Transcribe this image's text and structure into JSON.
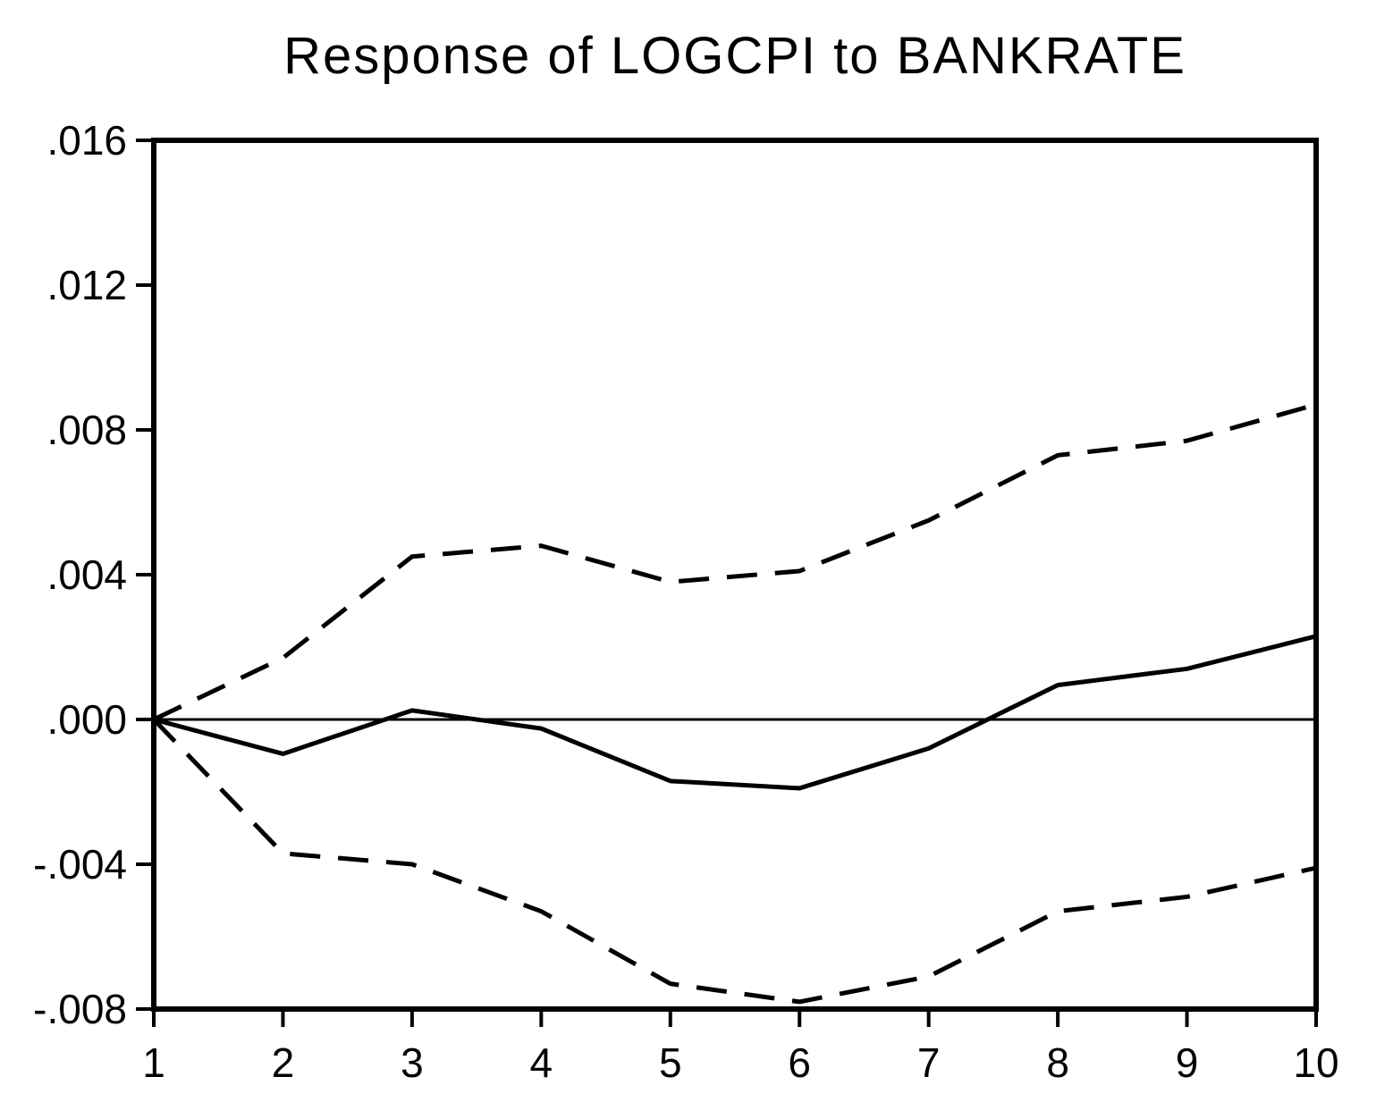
{
  "chart_data": {
    "type": "line",
    "title": "Response of LOGCPI to BANKRATE",
    "xlabel": "",
    "ylabel": "",
    "x": [
      1,
      2,
      3,
      4,
      5,
      6,
      7,
      8,
      9,
      10
    ],
    "xlim": [
      1,
      10
    ],
    "ylim": [
      -0.008,
      0.016
    ],
    "yticks": [
      -0.008,
      -0.004,
      0.0,
      0.004,
      0.008,
      0.012,
      0.016
    ],
    "ytick_labels": [
      "-.008",
      "-.004",
      ".000",
      ".004",
      ".008",
      ".012",
      ".016"
    ],
    "xtick_labels": [
      "1",
      "2",
      "3",
      "4",
      "5",
      "6",
      "7",
      "8",
      "9",
      "10"
    ],
    "zero_line": true,
    "grid": false,
    "series": [
      {
        "style": "solid",
        "values": [
          0.0,
          -0.00095,
          0.00025,
          -0.00025,
          -0.0017,
          -0.0019,
          -0.0008,
          0.00095,
          0.0014,
          0.0023
        ]
      },
      {
        "style": "dashed",
        "values": [
          0.0,
          0.0017,
          0.0045,
          0.0048,
          0.0038,
          0.0041,
          0.0055,
          0.0073,
          0.0077,
          0.0087
        ]
      },
      {
        "style": "dashed",
        "values": [
          0.0,
          -0.0037,
          -0.004,
          -0.0053,
          -0.0073,
          -0.0078,
          -0.0071,
          -0.0053,
          -0.0049,
          -0.0041
        ]
      }
    ],
    "colors": {
      "line": "#000000",
      "background": "#ffffff"
    }
  }
}
